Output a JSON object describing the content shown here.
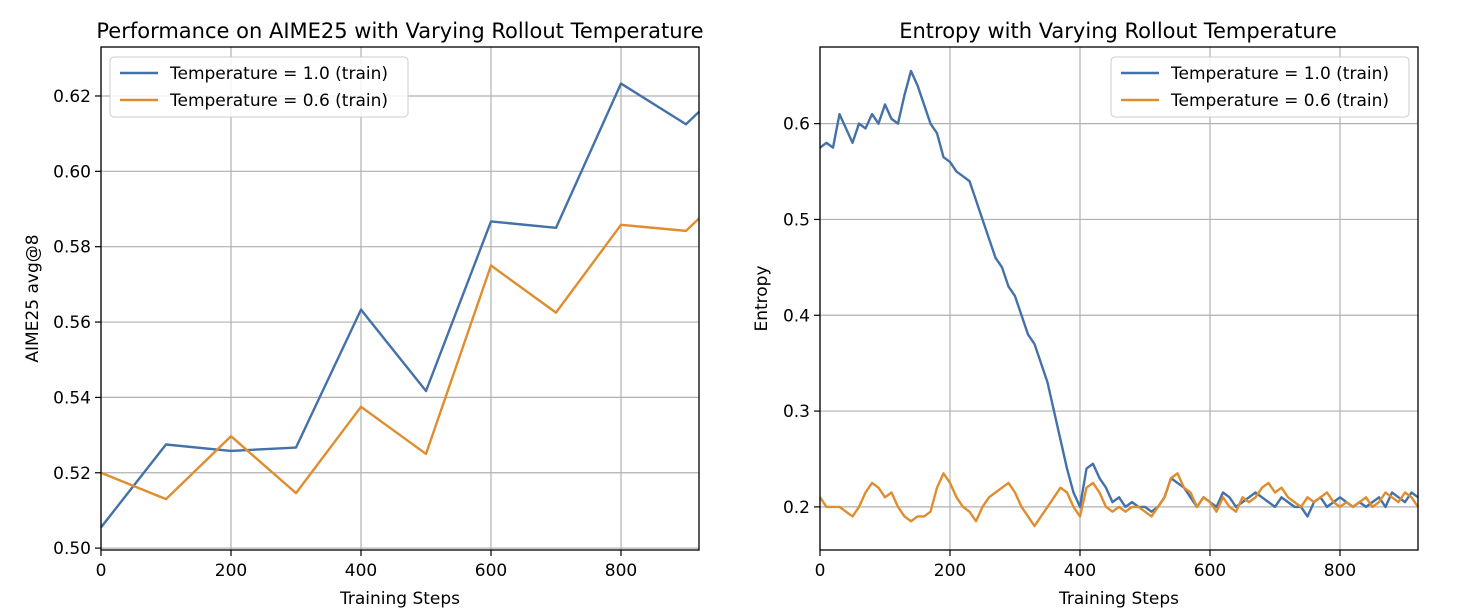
{
  "chart_data": [
    {
      "type": "line",
      "title": "Performance on AIME25 with Varying Rollout Temperature",
      "xlabel": "Training Steps",
      "ylabel": "AIME25 avg@8",
      "xlim": [
        0,
        920
      ],
      "ylim": [
        0.4995,
        0.633
      ],
      "xticks": [
        0,
        200,
        400,
        600,
        800
      ],
      "xtick_labels": [
        "0",
        "200",
        "400",
        "600",
        "800"
      ],
      "yticks": [
        0.5,
        0.52,
        0.54,
        0.56,
        0.58,
        0.6,
        0.62
      ],
      "ytick_labels": [
        "0.50",
        "0.52",
        "0.54",
        "0.56",
        "0.58",
        "0.60",
        "0.62"
      ],
      "grid": true,
      "legend_position": "top-left",
      "series": [
        {
          "name": "Temperature = 1.0 (train)",
          "color": "#4471a8",
          "x": [
            0,
            100,
            200,
            300,
            400,
            500,
            600,
            700,
            800,
            900,
            920
          ],
          "y": [
            0.5055,
            0.5275,
            0.5258,
            0.5267,
            0.5633,
            0.5417,
            0.5867,
            0.585,
            0.6233,
            0.6125,
            0.6158
          ]
        },
        {
          "name": "Temperature = 0.6 (train)",
          "color": "#e08d2f",
          "x": [
            0,
            100,
            200,
            300,
            400,
            500,
            600,
            700,
            800,
            900,
            920
          ],
          "y": [
            0.52,
            0.513,
            0.5297,
            0.5146,
            0.5375,
            0.525,
            0.575,
            0.5625,
            0.5858,
            0.5842,
            0.5875
          ]
        }
      ]
    },
    {
      "type": "line",
      "title": "Entropy with Varying Rollout Temperature",
      "xlabel": "Training Steps",
      "ylabel": "Entropy",
      "xlim": [
        0,
        920
      ],
      "ylim": [
        0.155,
        0.68
      ],
      "xticks": [
        0,
        200,
        400,
        600,
        800
      ],
      "xtick_labels": [
        "0",
        "200",
        "400",
        "600",
        "800"
      ],
      "yticks": [
        0.2,
        0.3,
        0.4,
        0.5,
        0.6
      ],
      "ytick_labels": [
        "0.2",
        "0.3",
        "0.4",
        "0.5",
        "0.6"
      ],
      "grid": true,
      "legend_position": "top-right",
      "series": [
        {
          "name": "Temperature = 1.0 (train)",
          "color": "#4471a8",
          "x": [
            0,
            10,
            20,
            30,
            40,
            50,
            60,
            70,
            80,
            90,
            100,
            110,
            120,
            130,
            140,
            150,
            160,
            170,
            180,
            190,
            200,
            210,
            220,
            230,
            240,
            250,
            260,
            270,
            280,
            290,
            300,
            310,
            320,
            330,
            340,
            350,
            360,
            370,
            380,
            390,
            400,
            410,
            420,
            430,
            440,
            450,
            460,
            470,
            480,
            490,
            500,
            510,
            520,
            530,
            540,
            550,
            560,
            570,
            580,
            590,
            600,
            610,
            620,
            630,
            640,
            650,
            660,
            670,
            680,
            690,
            700,
            710,
            720,
            730,
            740,
            750,
            760,
            770,
            780,
            790,
            800,
            810,
            820,
            830,
            840,
            850,
            860,
            870,
            880,
            890,
            900,
            910,
            920
          ],
          "y": [
            0.575,
            0.58,
            0.575,
            0.61,
            0.595,
            0.58,
            0.6,
            0.595,
            0.61,
            0.6,
            0.62,
            0.605,
            0.6,
            0.63,
            0.655,
            0.64,
            0.62,
            0.6,
            0.59,
            0.565,
            0.56,
            0.55,
            0.545,
            0.54,
            0.52,
            0.5,
            0.48,
            0.46,
            0.45,
            0.43,
            0.42,
            0.4,
            0.38,
            0.37,
            0.35,
            0.33,
            0.3,
            0.27,
            0.24,
            0.215,
            0.2,
            0.24,
            0.245,
            0.23,
            0.22,
            0.205,
            0.21,
            0.2,
            0.205,
            0.2,
            0.2,
            0.195,
            0.2,
            0.21,
            0.23,
            0.225,
            0.22,
            0.21,
            0.2,
            0.21,
            0.205,
            0.2,
            0.215,
            0.21,
            0.2,
            0.205,
            0.21,
            0.215,
            0.21,
            0.205,
            0.2,
            0.21,
            0.205,
            0.2,
            0.2,
            0.19,
            0.205,
            0.21,
            0.2,
            0.205,
            0.21,
            0.205,
            0.2,
            0.205,
            0.2,
            0.205,
            0.21,
            0.2,
            0.215,
            0.21,
            0.205,
            0.215,
            0.21
          ]
        },
        {
          "name": "Temperature = 0.6 (train)",
          "color": "#e08d2f",
          "x": [
            0,
            10,
            20,
            30,
            40,
            50,
            60,
            70,
            80,
            90,
            100,
            110,
            120,
            130,
            140,
            150,
            160,
            170,
            180,
            190,
            200,
            210,
            220,
            230,
            240,
            250,
            260,
            270,
            280,
            290,
            300,
            310,
            320,
            330,
            340,
            350,
            360,
            370,
            380,
            390,
            400,
            410,
            420,
            430,
            440,
            450,
            460,
            470,
            480,
            490,
            500,
            510,
            520,
            530,
            540,
            550,
            560,
            570,
            580,
            590,
            600,
            610,
            620,
            630,
            640,
            650,
            660,
            670,
            680,
            690,
            700,
            710,
            720,
            730,
            740,
            750,
            760,
            770,
            780,
            790,
            800,
            810,
            820,
            830,
            840,
            850,
            860,
            870,
            880,
            890,
            900,
            910,
            920
          ],
          "y": [
            0.21,
            0.2,
            0.2,
            0.2,
            0.195,
            0.19,
            0.2,
            0.215,
            0.225,
            0.22,
            0.21,
            0.215,
            0.2,
            0.19,
            0.185,
            0.19,
            0.19,
            0.195,
            0.22,
            0.235,
            0.225,
            0.21,
            0.2,
            0.195,
            0.185,
            0.2,
            0.21,
            0.215,
            0.22,
            0.225,
            0.215,
            0.2,
            0.19,
            0.18,
            0.19,
            0.2,
            0.21,
            0.22,
            0.215,
            0.2,
            0.19,
            0.22,
            0.225,
            0.215,
            0.2,
            0.195,
            0.2,
            0.195,
            0.2,
            0.2,
            0.195,
            0.19,
            0.2,
            0.21,
            0.23,
            0.235,
            0.22,
            0.215,
            0.2,
            0.21,
            0.205,
            0.195,
            0.21,
            0.2,
            0.195,
            0.21,
            0.205,
            0.21,
            0.22,
            0.225,
            0.215,
            0.22,
            0.21,
            0.205,
            0.2,
            0.21,
            0.205,
            0.21,
            0.215,
            0.205,
            0.2,
            0.205,
            0.2,
            0.205,
            0.21,
            0.2,
            0.205,
            0.215,
            0.21,
            0.205,
            0.215,
            0.21,
            0.2
          ]
        }
      ]
    }
  ]
}
